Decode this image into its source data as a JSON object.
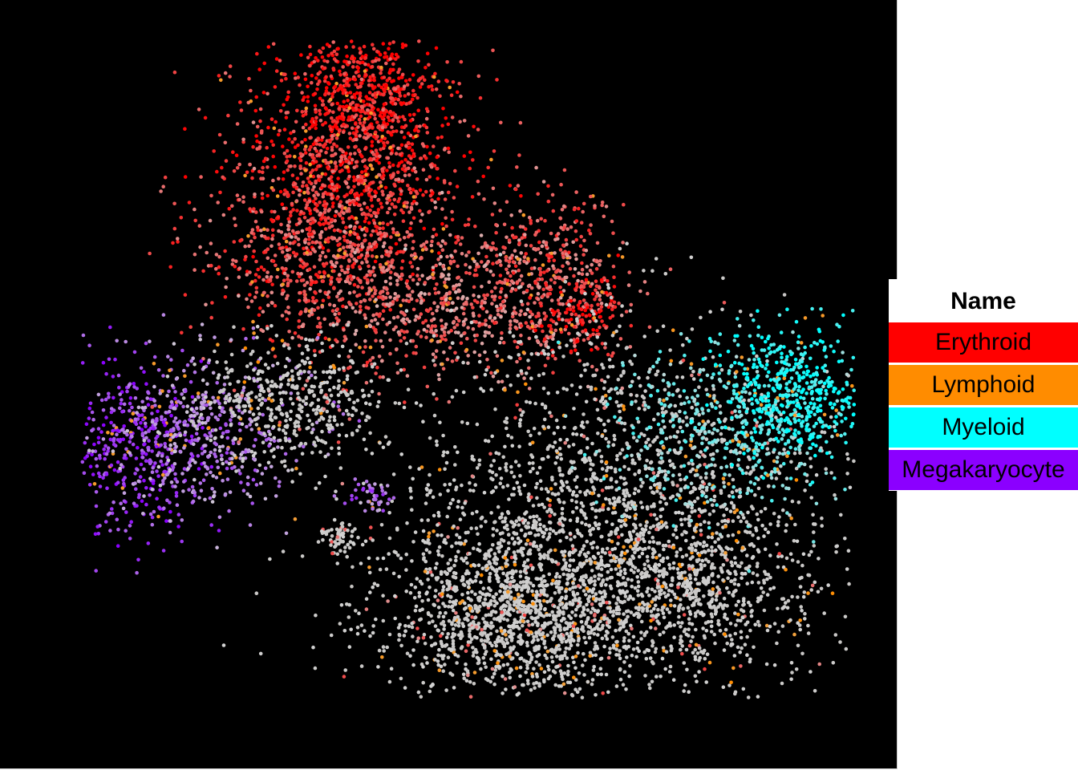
{
  "chart_data": {
    "type": "scatter",
    "title": "",
    "xlabel": "",
    "ylabel": "",
    "background": "#000000",
    "point_neutral_color": "#d3d3d3",
    "legend": {
      "title": "Name",
      "placement": "right",
      "entries": [
        {
          "label": "Erythroid",
          "color": "#ff0000"
        },
        {
          "label": "Lymphoid",
          "color": "#ff8c00"
        },
        {
          "label": "Myeloid",
          "color": "#00ffff"
        },
        {
          "label": "Megakaryocyte",
          "color": "#8b00ff"
        }
      ]
    },
    "series": [
      {
        "name": "Erythroid",
        "color": "#ff0000"
      },
      {
        "name": "Lymphoid",
        "color": "#ff8c00"
      },
      {
        "name": "Myeloid",
        "color": "#00ffff"
      },
      {
        "name": "Megakaryocyte",
        "color": "#8b00ff"
      }
    ]
  }
}
